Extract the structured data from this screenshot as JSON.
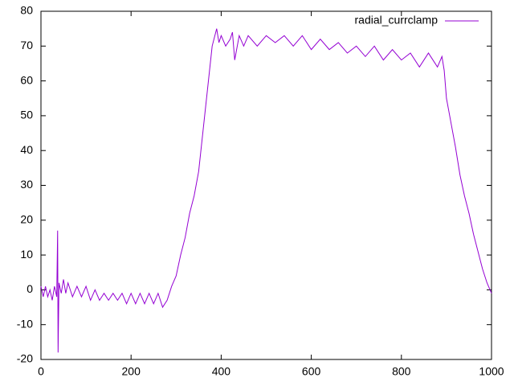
{
  "chart_data": {
    "type": "line",
    "x": [
      0,
      5,
      10,
      15,
      20,
      25,
      30,
      35,
      37,
      38,
      40,
      45,
      50,
      55,
      60,
      70,
      80,
      90,
      100,
      110,
      120,
      130,
      140,
      150,
      160,
      170,
      180,
      190,
      200,
      210,
      220,
      230,
      240,
      250,
      260,
      270,
      280,
      290,
      300,
      310,
      320,
      330,
      340,
      350,
      360,
      370,
      380,
      390,
      395,
      400,
      410,
      420,
      425,
      430,
      440,
      450,
      460,
      480,
      500,
      520,
      540,
      560,
      580,
      600,
      620,
      640,
      660,
      680,
      700,
      720,
      740,
      760,
      780,
      800,
      820,
      840,
      860,
      880,
      890,
      895,
      900,
      910,
      920,
      930,
      940,
      950,
      960,
      970,
      980,
      990,
      1000
    ],
    "series": [
      {
        "name": "radial_currclamp",
        "color": "#9400d3",
        "values": [
          1,
          -2,
          1,
          -2,
          0,
          -3,
          1,
          -2,
          17,
          -18,
          2,
          -1,
          3,
          -1,
          2,
          -2,
          1,
          -2,
          1,
          -3,
          0,
          -3,
          -1,
          -3,
          -1,
          -3,
          -1,
          -4,
          -1,
          -4,
          -1,
          -4,
          -1,
          -4,
          -1,
          -5,
          -3,
          1,
          4,
          10,
          15,
          22,
          27,
          34,
          46,
          58,
          70,
          75,
          71,
          73,
          70,
          72,
          74,
          66,
          73,
          70,
          73,
          70,
          73,
          71,
          73,
          70,
          73,
          69,
          72,
          69,
          71,
          68,
          70,
          67,
          70,
          66,
          69,
          66,
          68,
          64,
          68,
          64,
          67,
          63,
          55,
          48,
          41,
          33,
          27,
          22,
          16,
          11,
          6,
          2,
          -1
        ]
      }
    ],
    "xlim": [
      0,
      1000
    ],
    "xticks": [
      0,
      200,
      400,
      600,
      800,
      1000
    ],
    "ylim": [
      -20,
      80
    ],
    "yticks": [
      -20,
      -10,
      0,
      10,
      20,
      30,
      40,
      50,
      60,
      70,
      80
    ],
    "legend": "top-right"
  }
}
